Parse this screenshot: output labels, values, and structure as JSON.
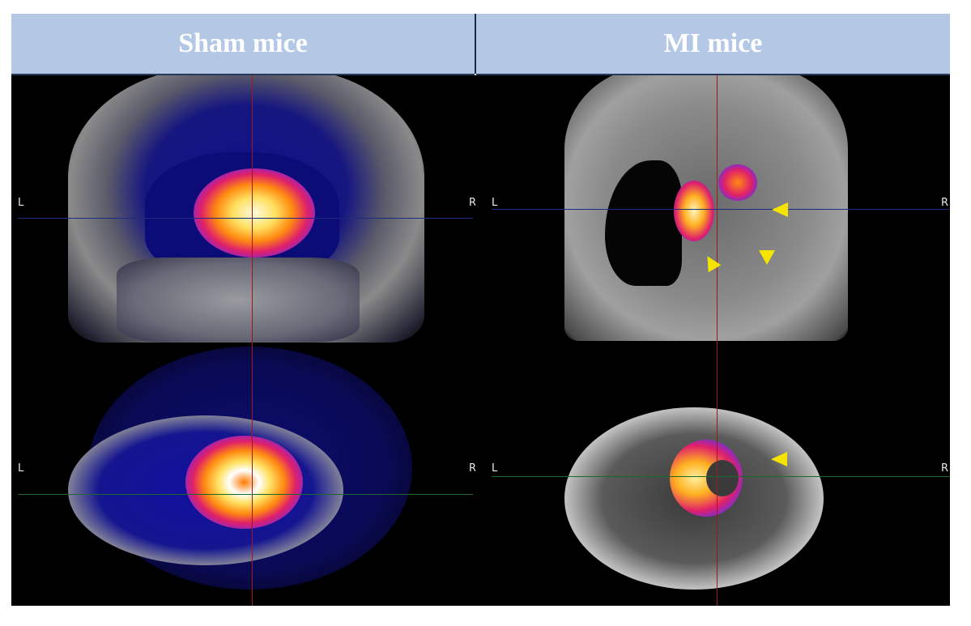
{
  "figure": {
    "columns": [
      {
        "title": "Sham mice"
      },
      {
        "title": "MI mice"
      }
    ],
    "orientation_labels": {
      "left": "L",
      "right": "R"
    },
    "colors": {
      "header_bg": "#b4c8e6",
      "header_text": "#ffffff",
      "crosshair_vertical": "#a01818",
      "crosshair_coronal": "#1c2a80",
      "crosshair_axial": "#1c6a2a",
      "arrowhead": "#f5e400"
    },
    "rows": [
      "coronal",
      "axial"
    ],
    "annotations": {
      "mi_arrowheads": 4,
      "arrowhead-icon": "yellow triangle"
    }
  }
}
